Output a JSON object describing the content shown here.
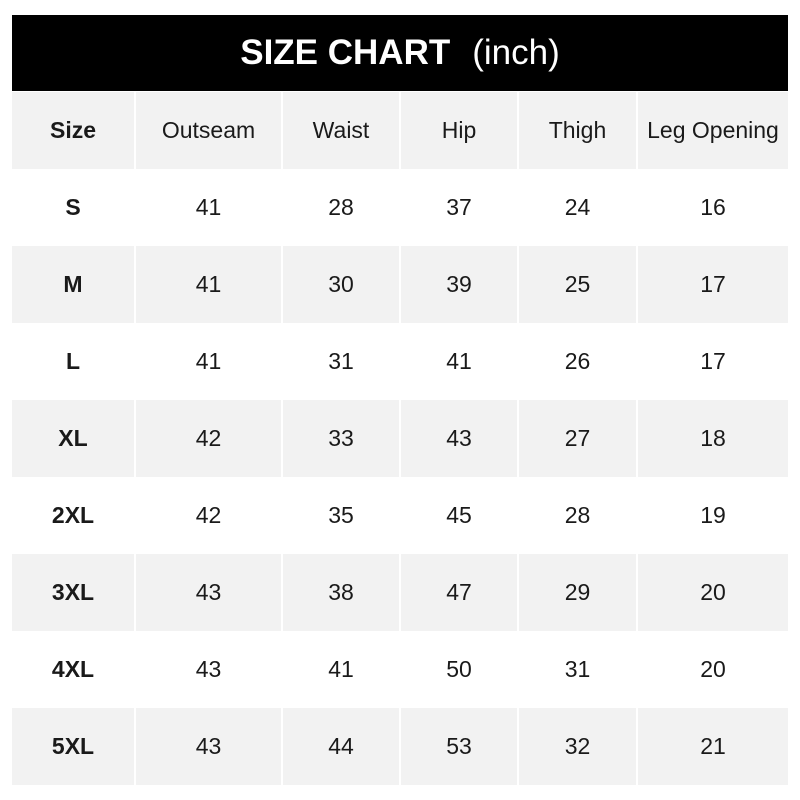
{
  "title": {
    "main": "SIZE CHART",
    "unit": "(inch)"
  },
  "headers": [
    "Size",
    "Outseam",
    "Waist",
    "Hip",
    "Thigh",
    "Leg Opening"
  ],
  "rows": [
    [
      "S",
      "41",
      "28",
      "37",
      "24",
      "16"
    ],
    [
      "M",
      "41",
      "30",
      "39",
      "25",
      "17"
    ],
    [
      "L",
      "41",
      "31",
      "41",
      "26",
      "17"
    ],
    [
      "XL",
      "42",
      "33",
      "43",
      "27",
      "18"
    ],
    [
      "2XL",
      "42",
      "35",
      "45",
      "28",
      "19"
    ],
    [
      "3XL",
      "43",
      "38",
      "47",
      "29",
      "20"
    ],
    [
      "4XL",
      "43",
      "41",
      "50",
      "31",
      "20"
    ],
    [
      "5XL",
      "43",
      "44",
      "53",
      "32",
      "21"
    ]
  ],
  "colors": {
    "header_bg": "#000000",
    "stripe": "#f2f2f2",
    "text": "#1a1a1a"
  }
}
